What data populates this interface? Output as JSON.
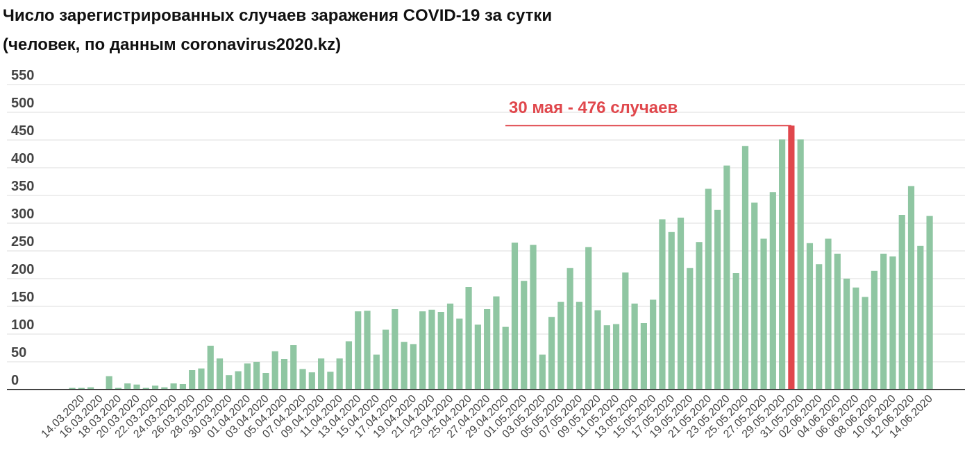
{
  "chart_data": {
    "type": "bar",
    "title": "Число зарегистрированных случаев заражения COVID-19 за сутки",
    "subtitle": "(человек, по данным coronavirus2020.kz)",
    "categories": [
      null,
      "14.03.2020",
      null,
      "16.03.2020",
      null,
      "18.03.2020",
      null,
      "20.03.2020",
      null,
      "22.03.2020",
      null,
      "24.03.2020",
      null,
      "26.03.2020",
      null,
      "28.03.2020",
      null,
      "30.03.2020",
      null,
      "01.04.2020",
      null,
      "03.04.2020",
      null,
      "05.04.2020",
      null,
      "07.04.2020",
      null,
      "09.04.2020",
      null,
      "11.04.2020",
      null,
      "13.04.2020",
      null,
      "15.04.2020",
      null,
      "17.04.2020",
      null,
      "19.04.2020",
      null,
      "21.04.2020",
      null,
      "23.04.2020",
      null,
      "25.04.2020",
      null,
      "27.04.2020",
      null,
      "29.04.2020",
      null,
      "01.05.2020",
      null,
      "03.05.2020",
      null,
      "05.05.2020",
      null,
      "07.05.2020",
      null,
      "09.05.2020",
      null,
      "11.05.2020",
      null,
      "13.05.2020",
      null,
      "15.05.2020",
      null,
      "17.05.2020",
      null,
      "19.05.2020",
      null,
      "21.05.2020",
      null,
      "23.05.2020",
      null,
      "25.05.2020",
      null,
      "27.05.2020",
      null,
      "29.05.2020",
      null,
      "31.05.2020",
      null,
      "02.06.2020",
      null,
      "04.06.2020",
      null,
      "06.06.2020",
      null,
      "08.06.2020",
      null,
      "10.06.2020",
      null,
      "12.06.2020",
      null,
      "14.06.2020"
    ],
    "values": [
      3,
      3,
      4,
      0,
      24,
      3,
      11,
      9,
      3,
      7,
      4,
      11,
      10,
      35,
      38,
      79,
      56,
      26,
      33,
      47,
      50,
      30,
      69,
      55,
      80,
      37,
      31,
      56,
      32,
      56,
      87,
      141,
      142,
      63,
      108,
      145,
      86,
      82,
      141,
      144,
      140,
      155,
      128,
      185,
      117,
      145,
      168,
      113,
      265,
      196,
      261,
      63,
      131,
      158,
      219,
      158,
      257,
      143,
      116,
      118,
      211,
      155,
      120,
      162,
      307,
      284,
      310,
      219,
      266,
      362,
      324,
      404,
      210,
      439,
      337,
      272,
      356,
      451,
      476,
      451,
      264,
      226,
      272,
      245,
      200,
      184,
      167,
      214,
      245,
      240,
      315,
      367,
      259,
      313
    ],
    "color": "#8fc6a2",
    "highlight": {
      "index": 78,
      "color": "#e0474c",
      "label": "30 мая - 476 случаев"
    },
    "ylim": [
      0,
      550
    ],
    "yticks": [
      0,
      50,
      100,
      150,
      200,
      250,
      300,
      350,
      400,
      450,
      500,
      550
    ],
    "grid": true
  }
}
